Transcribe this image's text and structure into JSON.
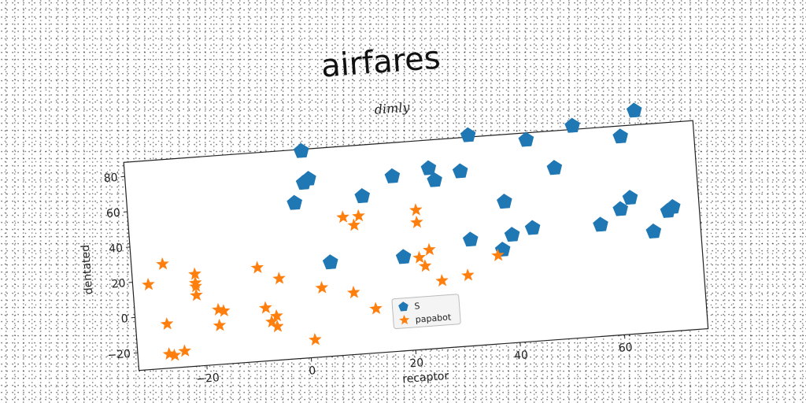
{
  "chart_data": {
    "type": "scatter",
    "title": "airfares",
    "subtitle": "dimly",
    "xlabel": "recaptor",
    "ylabel": "dentated",
    "xlim": [
      -33,
      76
    ],
    "ylim": [
      -30,
      88
    ],
    "xticks": [
      -20,
      0,
      20,
      40,
      60
    ],
    "yticks": [
      -20,
      0,
      20,
      40,
      60,
      80
    ],
    "legend_position": "lower-center",
    "series": [
      {
        "name": "S",
        "marker": "pentagon",
        "color": "#1f77b4",
        "points": [
          {
            "x": 1,
            "y": 87
          },
          {
            "x": 1,
            "y": 69
          },
          {
            "x": 2,
            "y": 71
          },
          {
            "x": -1,
            "y": 58
          },
          {
            "x": 5,
            "y": 23
          },
          {
            "x": 12,
            "y": 59
          },
          {
            "x": 18,
            "y": 69
          },
          {
            "x": 19,
            "y": 23
          },
          {
            "x": 25,
            "y": 72
          },
          {
            "x": 26,
            "y": 65
          },
          {
            "x": 31,
            "y": 69
          },
          {
            "x": 33,
            "y": 89
          },
          {
            "x": 32,
            "y": 30
          },
          {
            "x": 39,
            "y": 50
          },
          {
            "x": 38,
            "y": 23
          },
          {
            "x": 40,
            "y": 31
          },
          {
            "x": 44,
            "y": 84
          },
          {
            "x": 44,
            "y": 34
          },
          {
            "x": 49,
            "y": 67
          },
          {
            "x": 53,
            "y": 90
          },
          {
            "x": 57,
            "y": 33
          },
          {
            "x": 61,
            "y": 41
          },
          {
            "x": 62,
            "y": 82
          },
          {
            "x": 63,
            "y": 47
          },
          {
            "x": 65,
            "y": 96
          },
          {
            "x": 67,
            "y": 27
          },
          {
            "x": 70,
            "y": 38
          },
          {
            "x": 71,
            "y": 40
          }
        ]
      },
      {
        "name": "papabot",
        "marker": "star",
        "color": "#ff7f0e",
        "points": [
          {
            "x": -30,
            "y": 18
          },
          {
            "x": -27,
            "y": 29
          },
          {
            "x": -27,
            "y": -5
          },
          {
            "x": -27,
            "y": -22
          },
          {
            "x": -26,
            "y": -23
          },
          {
            "x": -24,
            "y": -21
          },
          {
            "x": -21,
            "y": 22
          },
          {
            "x": -21,
            "y": 17
          },
          {
            "x": -21,
            "y": 15
          },
          {
            "x": -21,
            "y": 10
          },
          {
            "x": -17,
            "y": 1
          },
          {
            "x": -17,
            "y": -8
          },
          {
            "x": -16,
            "y": 0
          },
          {
            "x": -9,
            "y": 23
          },
          {
            "x": -8,
            "y": 0
          },
          {
            "x": -7,
            "y": -8
          },
          {
            "x": -6,
            "y": -5
          },
          {
            "x": -6,
            "y": -11
          },
          {
            "x": -5,
            "y": 16
          },
          {
            "x": 1,
            "y": -20
          },
          {
            "x": 3,
            "y": 9
          },
          {
            "x": 8,
            "y": 48
          },
          {
            "x": 9,
            "y": 5
          },
          {
            "x": 10,
            "y": 43
          },
          {
            "x": 11,
            "y": 48
          },
          {
            "x": 13,
            "y": -5
          },
          {
            "x": 22,
            "y": 49
          },
          {
            "x": 22,
            "y": 42
          },
          {
            "x": 22,
            "y": 22
          },
          {
            "x": 23,
            "y": 17
          },
          {
            "x": 24,
            "y": 26
          },
          {
            "x": 26,
            "y": 8
          },
          {
            "x": 31,
            "y": 10
          },
          {
            "x": 37,
            "y": 20
          }
        ]
      }
    ]
  }
}
